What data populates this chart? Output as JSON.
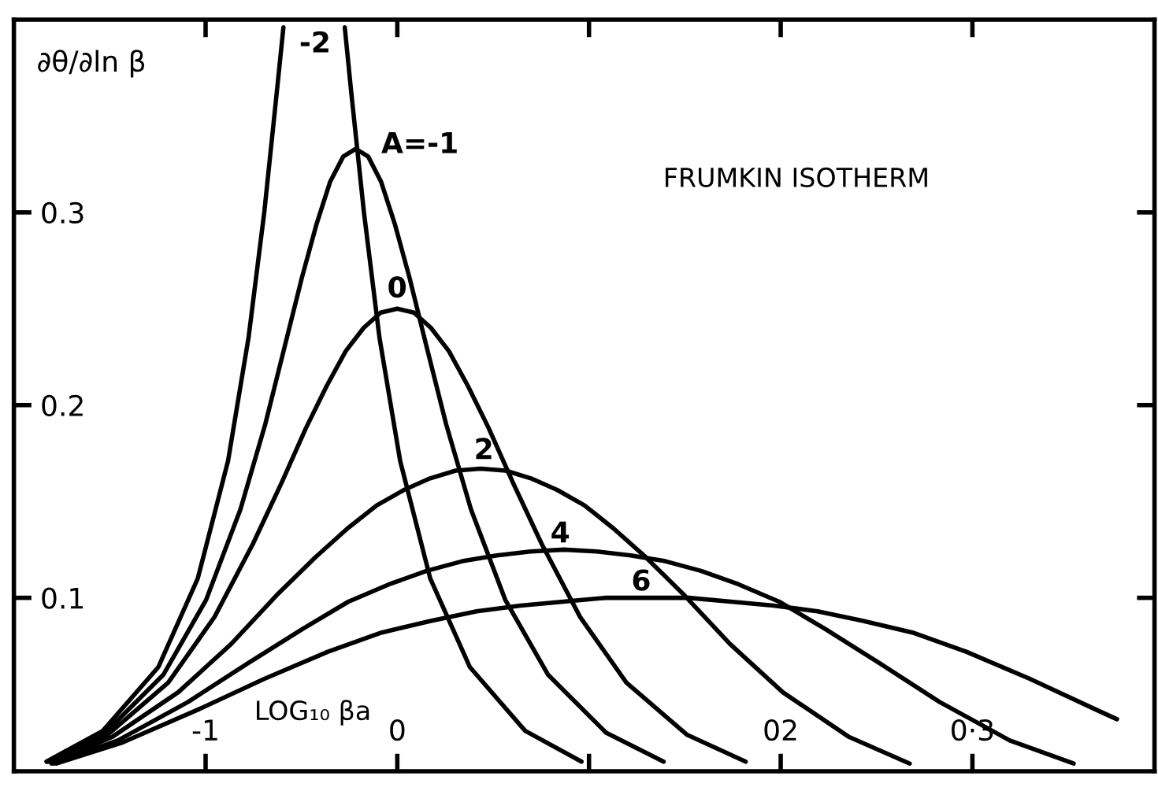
{
  "chart_data": {
    "type": "line",
    "title": "FRUMKIN ISOTHERM",
    "xlabel": "LOG₁₀ βa",
    "ylabel": "∂θ/∂ln β",
    "xlim": [
      -2.0,
      3.95
    ],
    "ylim": [
      0.01,
      0.4
    ],
    "xticks": [
      {
        "value": -1,
        "label": "-1"
      },
      0,
      {
        "value": 1,
        "label": null
      },
      {
        "value": 2,
        "label": "02"
      },
      {
        "value": 3,
        "label": "0·3"
      }
    ],
    "yticks": [
      0.1,
      0.2,
      0.3
    ],
    "grid": false,
    "marker": "none",
    "line_style": "solid",
    "series": [
      {
        "color": "#000000",
        "x": [
          -1.83,
          -1.536,
          -1.247,
          -1.041,
          -0.883,
          -0.776,
          -0.694,
          -0.629,
          -0.594,
          -0.43,
          -0.274,
          -0.24,
          -0.174,
          -0.093,
          0.015,
          0.172,
          0.379,
          0.667,
          0.961
        ],
        "values": [
          0.015,
          0.031,
          0.064,
          0.11,
          0.171,
          0.235,
          0.3,
          0.362,
          0.396,
          null,
          0.396,
          0.362,
          0.3,
          0.235,
          0.171,
          0.11,
          0.064,
          0.031,
          0.015
        ]
      },
      {
        "color": "#000000",
        "x": [
          -1.824,
          -1.523,
          -1.221,
          -0.997,
          -0.818,
          -0.689,
          -0.586,
          -0.498,
          -0.421,
          -0.35,
          -0.282,
          -0.217,
          -0.152,
          -0.085,
          -0.013,
          0.064,
          0.151,
          0.255,
          0.384,
          0.563,
          0.787,
          1.089,
          1.389
        ],
        "values": [
          0.015,
          0.03,
          0.06,
          0.099,
          0.146,
          0.19,
          0.231,
          0.266,
          0.294,
          0.316,
          0.329,
          0.333,
          0.329,
          0.316,
          0.294,
          0.266,
          0.231,
          0.19,
          0.146,
          0.099,
          0.06,
          0.03,
          0.015
        ]
      },
      {
        "color": "#000000",
        "x": [
          -1.817,
          -1.51,
          -1.195,
          -0.954,
          -0.753,
          -0.602,
          -0.477,
          -0.368,
          -0.269,
          -0.176,
          -0.087,
          0,
          0.087,
          0.176,
          0.269,
          0.368,
          0.477,
          0.602,
          0.753,
          0.954,
          1.195,
          1.51,
          1.817
        ],
        "values": [
          0.015,
          0.029,
          0.056,
          0.09,
          0.128,
          0.16,
          0.188,
          0.21,
          0.228,
          0.24,
          0.248,
          0.25,
          0.248,
          0.24,
          0.228,
          0.21,
          0.188,
          0.16,
          0.128,
          0.09,
          0.056,
          0.029,
          0.015
        ]
      },
      {
        "color": "#000000",
        "x": [
          -1.804,
          -1.484,
          -1.143,
          -0.867,
          -0.623,
          -0.428,
          -0.26,
          -0.107,
          0.035,
          0.171,
          0.304,
          0.434,
          0.565,
          0.697,
          0.834,
          0.976,
          1.128,
          1.297,
          1.491,
          1.736,
          2.011,
          2.353,
          2.673
        ],
        "values": [
          0.014,
          0.028,
          0.051,
          0.076,
          0.102,
          0.121,
          0.136,
          0.148,
          0.156,
          0.162,
          0.166,
          0.167,
          0.166,
          0.162,
          0.156,
          0.148,
          0.136,
          0.121,
          0.102,
          0.076,
          0.051,
          0.028,
          0.014
        ]
      },
      {
        "color": "#000000",
        "x": [
          -1.791,
          -1.458,
          -1.091,
          -0.78,
          -0.492,
          -0.255,
          -0.043,
          0.153,
          0.339,
          0.519,
          0.695,
          0.869,
          1.042,
          1.218,
          1.398,
          1.584,
          1.78,
          1.992,
          2.23,
          2.517,
          2.828,
          3.195,
          3.528
        ],
        "values": [
          0.014,
          0.026,
          0.046,
          0.066,
          0.084,
          0.098,
          0.107,
          0.114,
          0.119,
          0.122,
          0.124,
          0.125,
          0.124,
          0.122,
          0.119,
          0.114,
          0.107,
          0.098,
          0.084,
          0.066,
          0.046,
          0.026,
          0.014
        ]
      },
      {
        "color": "#000000",
        "x": [
          -1.778,
          -1.432,
          -1.039,
          -0.693,
          -0.362,
          -0.081,
          0.174,
          0.414,
          0.643,
          0.866,
          1.086,
          1.303,
          1.52,
          1.74,
          1.963,
          2.192,
          2.431,
          2.687,
          2.968,
          3.299,
          3.644,
          3.754
        ],
        "values": [
          0.014,
          0.025,
          0.042,
          0.058,
          0.072,
          0.082,
          0.088,
          0.093,
          0.096,
          0.098,
          0.1,
          0.1,
          0.1,
          0.098,
          0.096,
          0.093,
          0.088,
          0.082,
          0.072,
          0.058,
          0.042,
          0.037
        ]
      }
    ],
    "annotations": [
      "-2",
      "A=-1",
      "0",
      "2",
      "4",
      "6"
    ]
  }
}
